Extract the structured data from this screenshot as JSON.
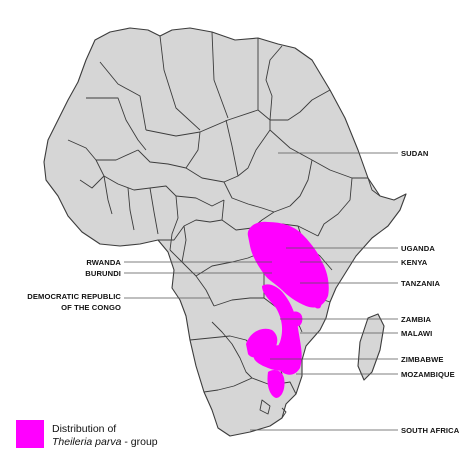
{
  "map": {
    "colors": {
      "land": "#d6d6d6",
      "border": "#3c3c3c",
      "distribution": "#ff00ff",
      "background": "#ffffff"
    }
  },
  "labels": {
    "sudan": "SUDAN",
    "uganda": "UGANDA",
    "kenya": "KENYA",
    "tanzania": "TANZANIA",
    "zambia": "ZAMBIA",
    "malawi": "MALAWI",
    "zimbabwe": "ZIMBABWE",
    "mozambique": "MOZAMBIQUE",
    "south_africa": "SOUTH AFRICA",
    "rwanda": "RWANDA",
    "burundi": "BURUNDI",
    "drc_line1": "DEMOCRATIC REPUBLIC",
    "drc_line2": "OF THE CONGO"
  },
  "legend": {
    "line1": "Distribution of",
    "line2_species": "Theileria parva",
    "line2_suffix": " - group",
    "swatch_color": "#ff00ff"
  }
}
